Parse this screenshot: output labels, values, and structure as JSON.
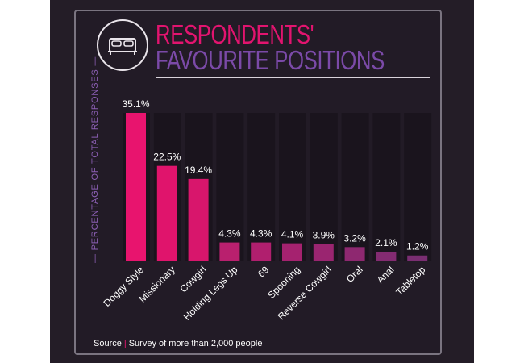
{
  "header": {
    "title_line1": "RESPONDENTS'",
    "title_line2": "FAVOURITE POSITIONS",
    "icon": "bed-icon"
  },
  "footer": {
    "source_label": "Source",
    "source_separator": "|",
    "source_text": "Survey of more than 2,000 people"
  },
  "colors": {
    "background": "#221b26",
    "accent_pink": "#e2146f",
    "accent_purple": "#7b4aa8"
  },
  "chart_data": {
    "type": "bar",
    "title": "RESPONDENTS' FAVOURITE POSITIONS",
    "xlabel": "",
    "ylabel": "PERCENTAGE OF TOTAL RESPONSES",
    "categories": [
      "Doggy Style",
      "Missionary",
      "Cowgirl",
      "Holding Legs Up",
      "69",
      "Spooning",
      "Reverse Cowgirl",
      "Oral",
      "Anal",
      "Tabletop"
    ],
    "values": [
      35.1,
      22.5,
      19.4,
      4.3,
      4.3,
      4.1,
      3.9,
      3.2,
      2.1,
      1.2
    ],
    "value_labels": [
      "35.1%",
      "22.5%",
      "19.4%",
      "4.3%",
      "4.3%",
      "4.1%",
      "3.9%",
      "3.2%",
      "2.1%",
      "1.2%"
    ],
    "bar_colors": [
      "#e8146e",
      "#e0146c",
      "#d8166c",
      "#b9206e",
      "#b01f6e",
      "#a5226f",
      "#9a2570",
      "#8e2870",
      "#832b71",
      "#7a2e72"
    ],
    "ylim": [
      0,
      35.1
    ],
    "grid": false
  }
}
